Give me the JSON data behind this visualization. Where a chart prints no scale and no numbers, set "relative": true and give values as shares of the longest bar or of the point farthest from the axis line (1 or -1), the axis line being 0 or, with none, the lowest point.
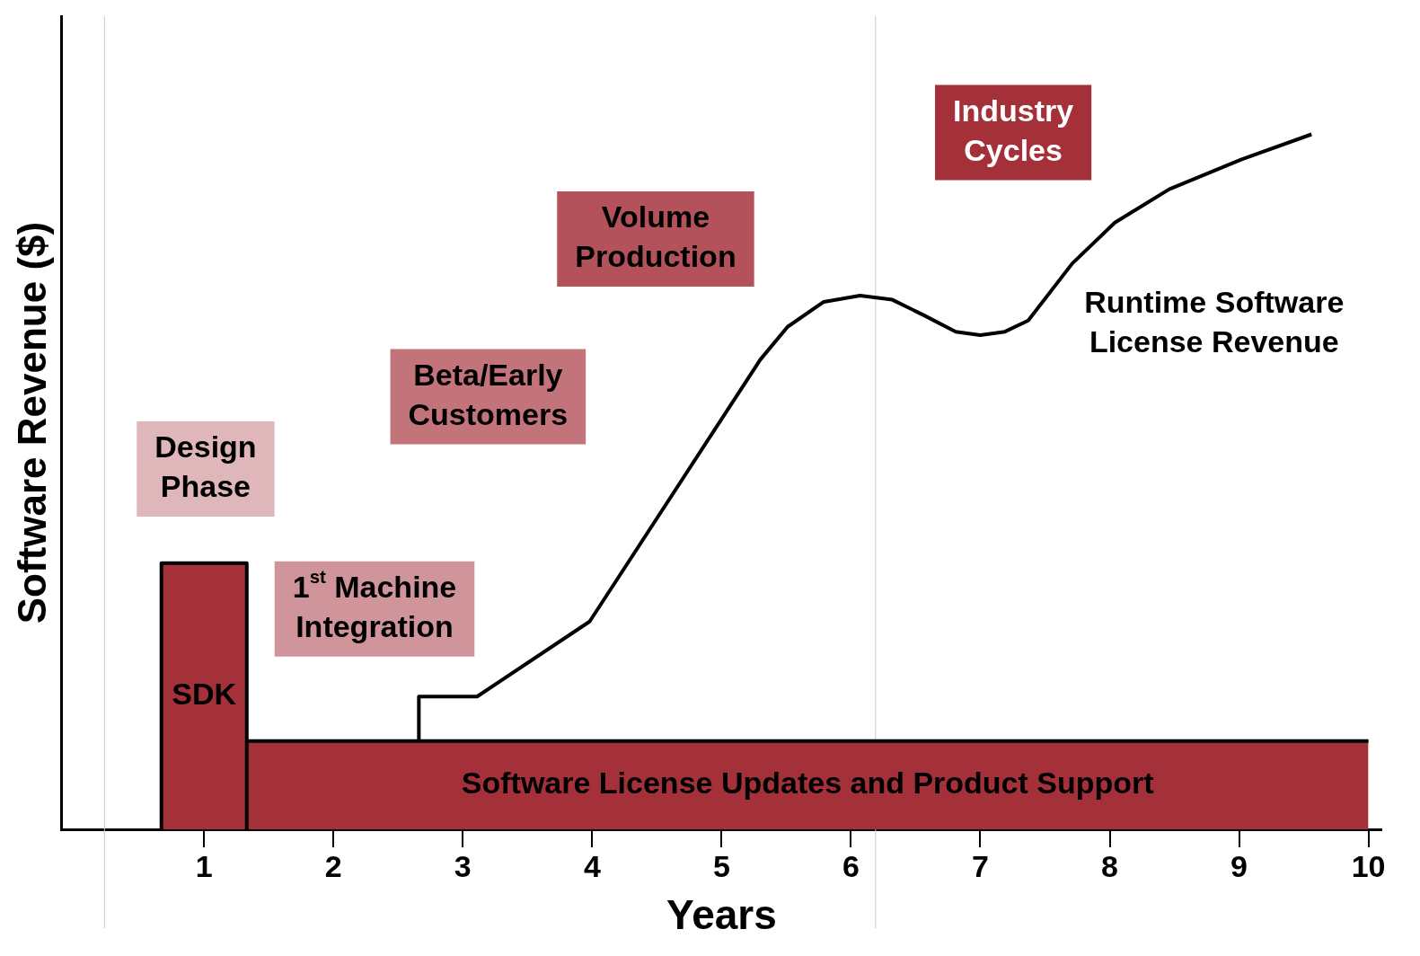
{
  "chart_data": {
    "type": "line",
    "xlabel": "Years",
    "ylabel": "Software Revenue ($)",
    "relative": true,
    "xlim": [
      -0.1,
      10.1
    ],
    "xticks": [
      1,
      2,
      3,
      4,
      5,
      6,
      7,
      8,
      9,
      10
    ],
    "grid": false,
    "legend": false,
    "marker": "none",
    "series": [
      {
        "name": "SDK",
        "type": "area",
        "color": "#a4313a",
        "x": [
          0.67,
          0.67,
          1.33,
          1.33
        ],
        "values": [
          0,
          0.383,
          0.383,
          0
        ]
      },
      {
        "name": "Software License Updates and Product Support",
        "type": "area",
        "color": "#a4313a",
        "x": [
          1.33,
          10
        ],
        "values": [
          0.127,
          0.127
        ]
      },
      {
        "name": "Runtime Software License Revenue",
        "type": "line",
        "color": "#000000",
        "x": [
          2.66,
          2.66,
          3.11,
          3.98,
          5.3,
          5.51,
          5.79,
          6.07,
          6.32,
          6.56,
          6.81,
          7.0,
          7.19,
          7.37,
          7.71,
          8.04,
          8.46,
          9.02,
          9.56
        ],
        "values": [
          0.127,
          0.191,
          0.191,
          0.299,
          0.676,
          0.723,
          0.759,
          0.768,
          0.762,
          0.74,
          0.716,
          0.711,
          0.716,
          0.732,
          0.814,
          0.873,
          0.921,
          0.964,
          1.0
        ]
      }
    ],
    "ref_lines": [
      {
        "axis": "x",
        "value": 0.23,
        "color": "#c8c8c8"
      },
      {
        "axis": "x",
        "value": 6.19,
        "color": "#c8c8c8"
      }
    ],
    "annotations": [
      "Design Phase",
      "1$^{st}$ Machine Integration",
      "Beta/Early Customers",
      "Volume Production",
      "Industry Cycles"
    ]
  }
}
